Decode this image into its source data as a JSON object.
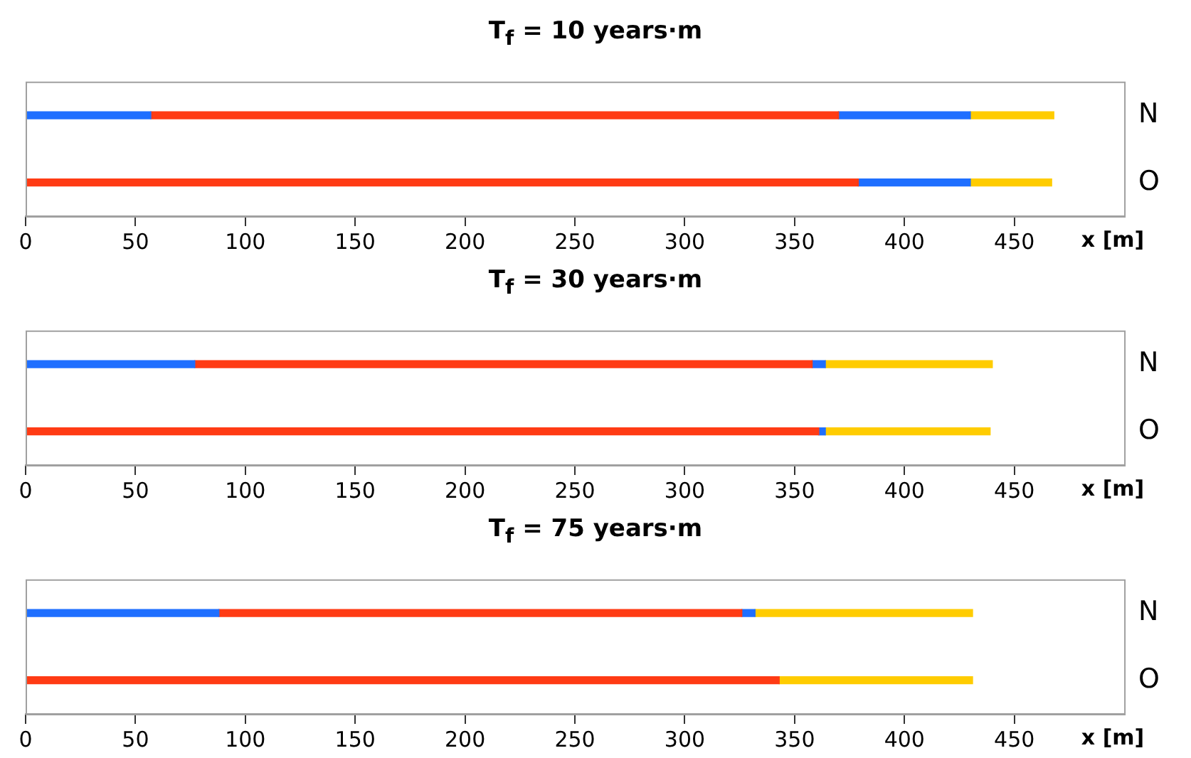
{
  "chart_data": [
    {
      "type": "bar",
      "orientation": "horizontal",
      "stacked": true,
      "title": "T$_{f}$ = 10 years·m",
      "xlabel": "x [m]",
      "categories": [
        "N",
        "O"
      ],
      "xlim": [
        0,
        500
      ],
      "xticks": [
        0,
        50,
        100,
        150,
        200,
        250,
        300,
        350,
        400,
        450
      ],
      "grid": false,
      "legend": false,
      "series": [
        {
          "color": "#1f6fff",
          "values": [
            57,
            null
          ]
        },
        {
          "color": "#ff3b14",
          "values": [
            313,
            379
          ]
        },
        {
          "color": "#1f6fff",
          "values": [
            60,
            51
          ]
        },
        {
          "color": "#ffcc00",
          "values": [
            38,
            37
          ]
        }
      ]
    },
    {
      "type": "bar",
      "orientation": "horizontal",
      "stacked": true,
      "title": "T$_{f}$ = 30 years·m",
      "xlabel": "x [m]",
      "categories": [
        "N",
        "O"
      ],
      "xlim": [
        0,
        500
      ],
      "xticks": [
        0,
        50,
        100,
        150,
        200,
        250,
        300,
        350,
        400,
        450
      ],
      "grid": false,
      "legend": false,
      "series": [
        {
          "color": "#1f6fff",
          "values": [
            77,
            null
          ]
        },
        {
          "color": "#ff3b14",
          "values": [
            281,
            361
          ]
        },
        {
          "color": "#1f6fff",
          "values": [
            6,
            3
          ]
        },
        {
          "color": "#ffcc00",
          "values": [
            76,
            75
          ]
        }
      ]
    },
    {
      "type": "bar",
      "orientation": "horizontal",
      "stacked": true,
      "title": "T$_{f}$ = 75 years·m",
      "xlabel": "x [m]",
      "categories": [
        "N",
        "O"
      ],
      "xlim": [
        0,
        500
      ],
      "xticks": [
        0,
        50,
        100,
        150,
        200,
        250,
        300,
        350,
        400,
        450
      ],
      "grid": false,
      "legend": false,
      "series": [
        {
          "color": "#1f6fff",
          "values": [
            88,
            null
          ]
        },
        {
          "color": "#ff3b14",
          "values": [
            238,
            343
          ]
        },
        {
          "color": "#1f6fff",
          "values": [
            6,
            null
          ]
        },
        {
          "color": "#ffcc00",
          "values": [
            99,
            88
          ]
        }
      ]
    }
  ]
}
